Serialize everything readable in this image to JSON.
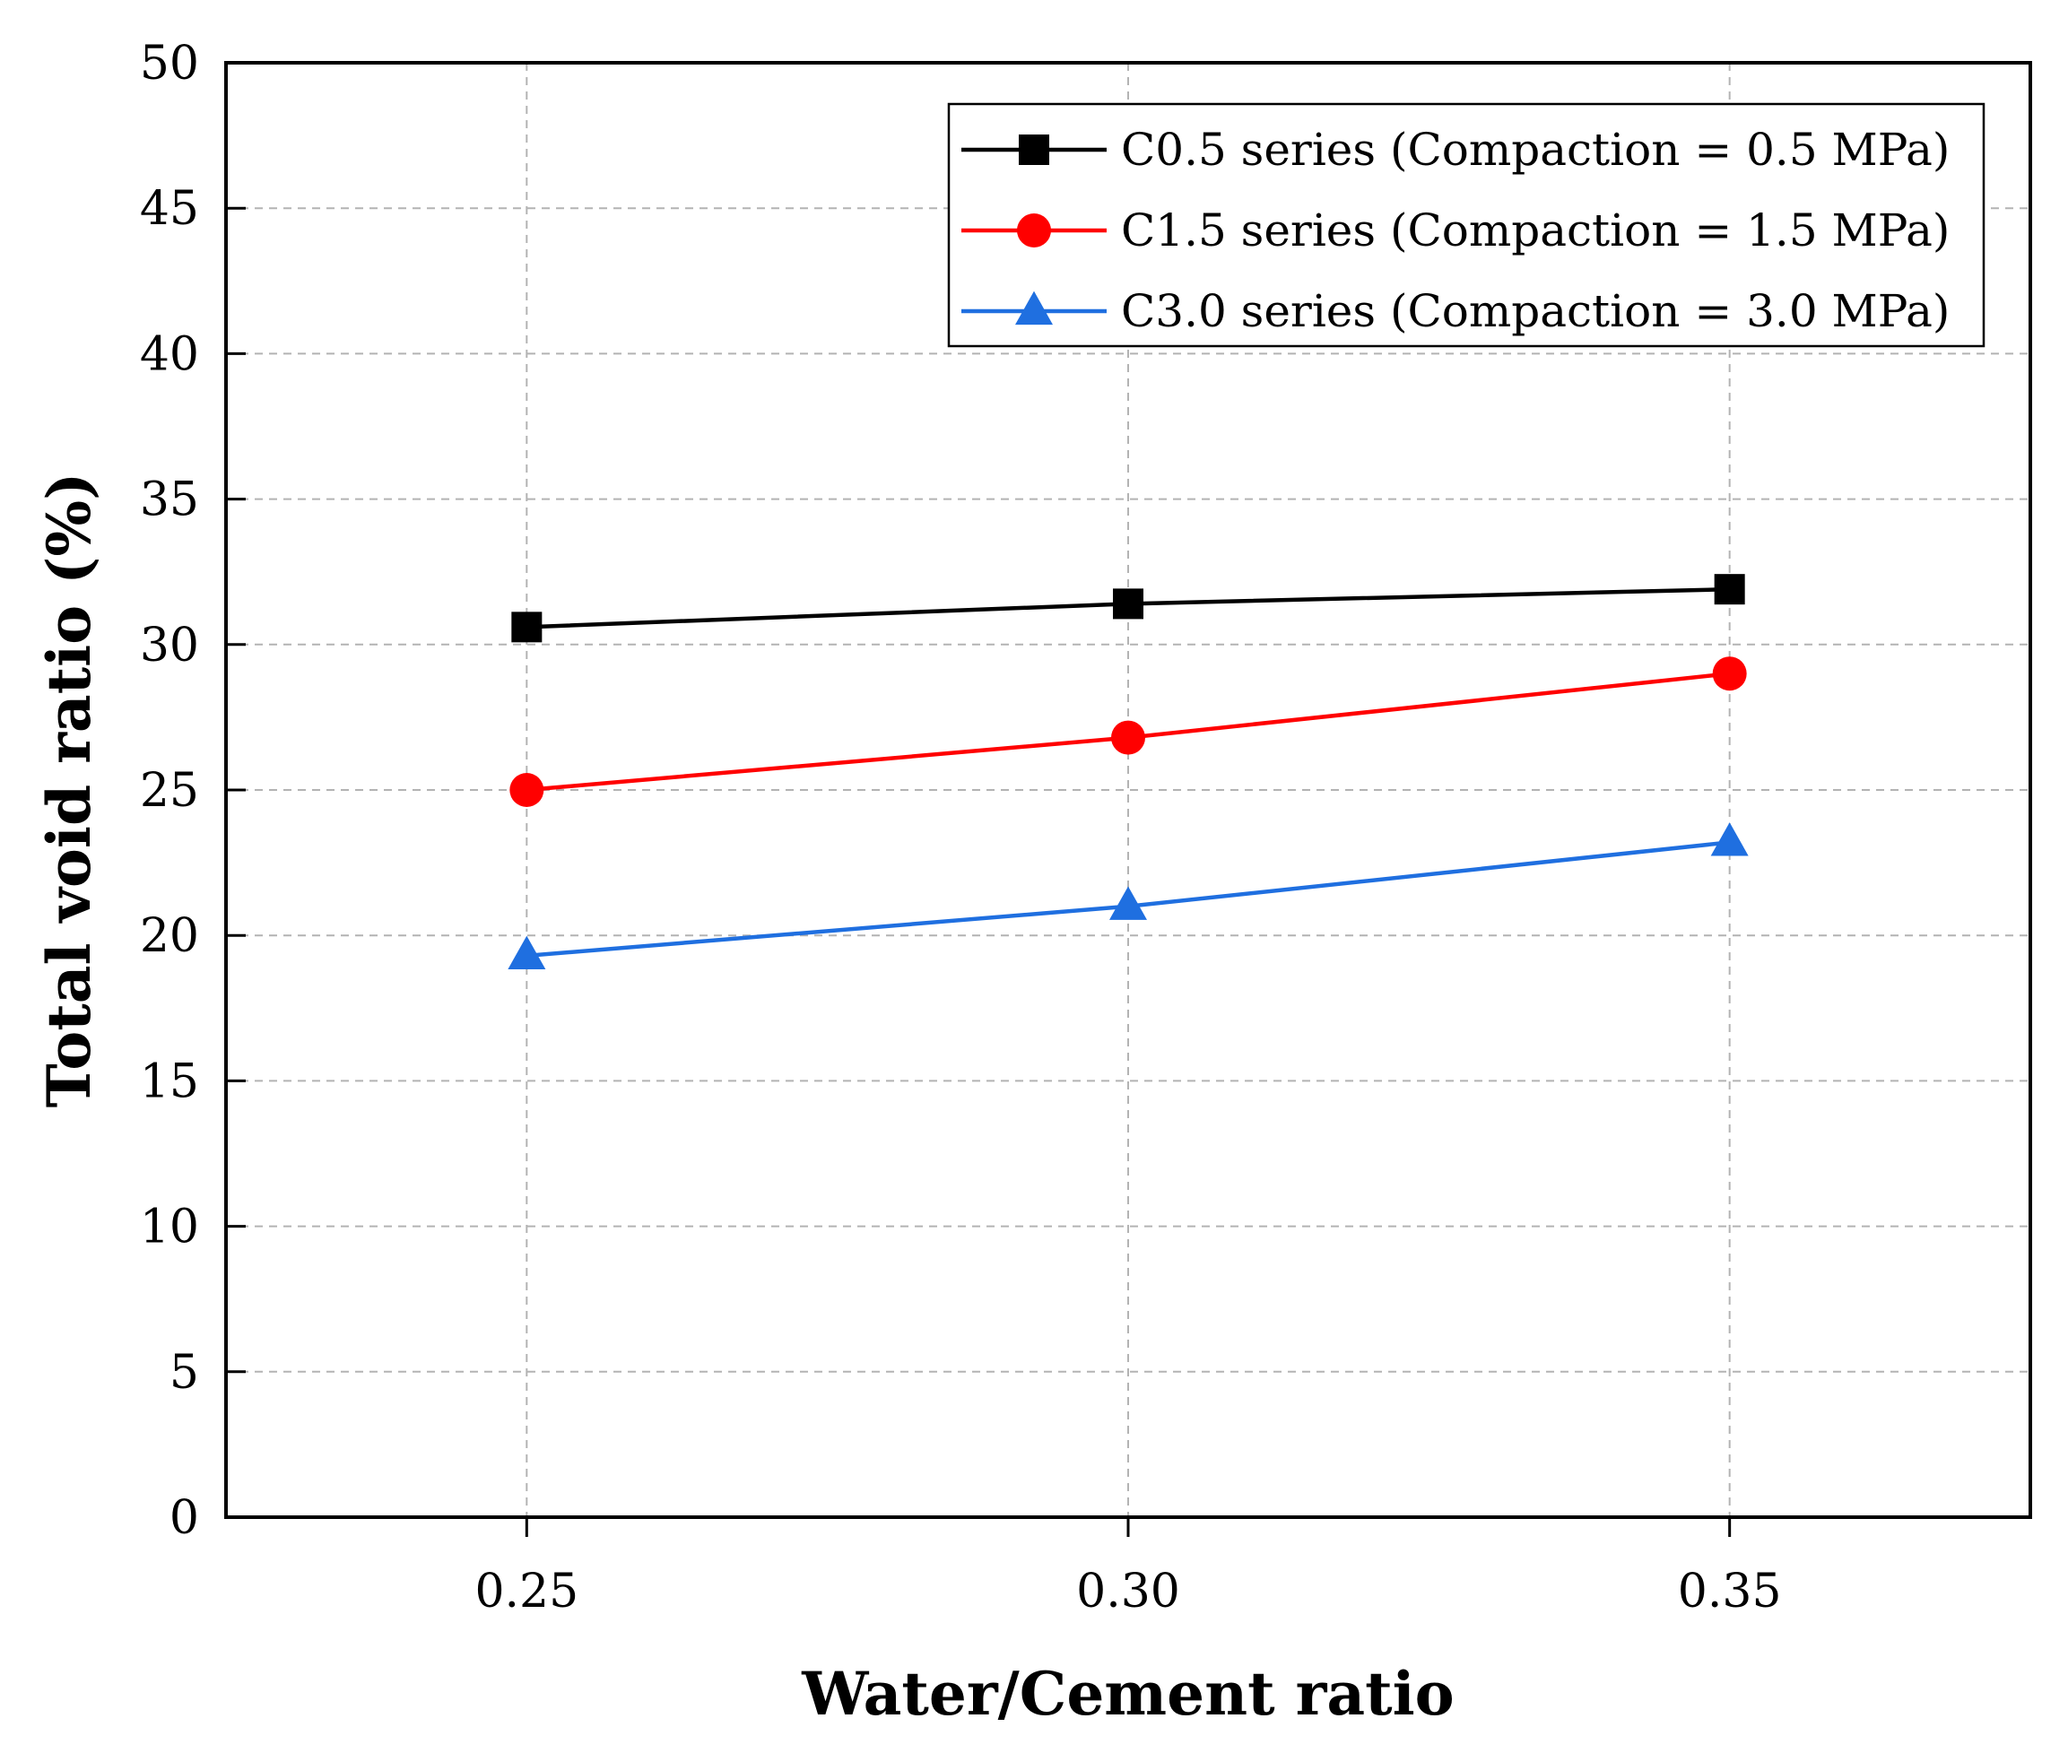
{
  "chart_data": {
    "type": "line",
    "title": "",
    "xlabel": "Water/Cement ratio",
    "ylabel": "Total void ratio (%)",
    "x": [
      0.25,
      0.3,
      0.35
    ],
    "x_tick_labels": [
      "0.25",
      "0.30",
      "0.35"
    ],
    "xlim": [
      0.225,
      0.375
    ],
    "ylim": [
      0,
      50
    ],
    "y_ticks": [
      0,
      5,
      10,
      15,
      20,
      25,
      30,
      35,
      40,
      45,
      50
    ],
    "y_tick_labels": [
      "0",
      "5",
      "10",
      "15",
      "20",
      "25",
      "30",
      "35",
      "40",
      "45",
      "50"
    ],
    "grid": true,
    "legend_position": "top-right",
    "series": [
      {
        "name": "C0.5 series (Compaction = 0.5 MPa)",
        "values": [
          30.6,
          31.4,
          31.9
        ],
        "color": "#000000",
        "marker": "square"
      },
      {
        "name": "C1.5 series (Compaction = 1.5 MPa)",
        "values": [
          25.0,
          26.8,
          29.0
        ],
        "color": "#ff0000",
        "marker": "circle"
      },
      {
        "name": "C3.0 series (Compaction = 3.0 MPa)",
        "values": [
          19.3,
          21.0,
          23.2
        ],
        "color": "#1f6fe0",
        "marker": "triangle"
      }
    ]
  }
}
